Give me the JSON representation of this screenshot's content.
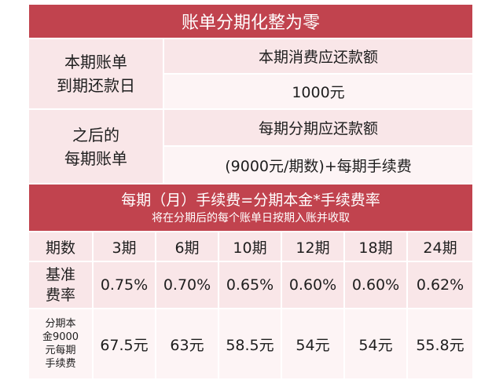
{
  "title": "账单分期化整为零",
  "section1": {
    "label_line1": "本期账单",
    "label_line2": "到期还款日",
    "value_header": "本期消费应还款额",
    "value": "1000元"
  },
  "section2": {
    "label_line1": "之后的",
    "label_line2": "每期账单",
    "value_header": "每期分期应还款额",
    "value": "(9000元/期数)+每期手续费"
  },
  "formula": {
    "line1": "每期（月）手续费=分期本金*手续费率",
    "line2": "将在分期后的每个账单日按期入账并收取"
  },
  "table": {
    "header_label": "期数",
    "periods": [
      "3期",
      "6期",
      "10期",
      "12期",
      "18期",
      "24期"
    ],
    "rate_label_line1": "基准",
    "rate_label_line2": "费率",
    "rates": [
      "0.75%",
      "0.70%",
      "0.65%",
      "0.60%",
      "0.60%",
      "0.62%"
    ],
    "fee_label_lines": [
      "分期本",
      "金9000",
      "元每期",
      "手续费"
    ],
    "fees": [
      "67.5元",
      "63元",
      "58.5元",
      "54元",
      "54元",
      "55.8元"
    ]
  },
  "colors": {
    "accent": "#c1434e",
    "pink": "#f9e6e8",
    "light": "#fdf4f5"
  }
}
